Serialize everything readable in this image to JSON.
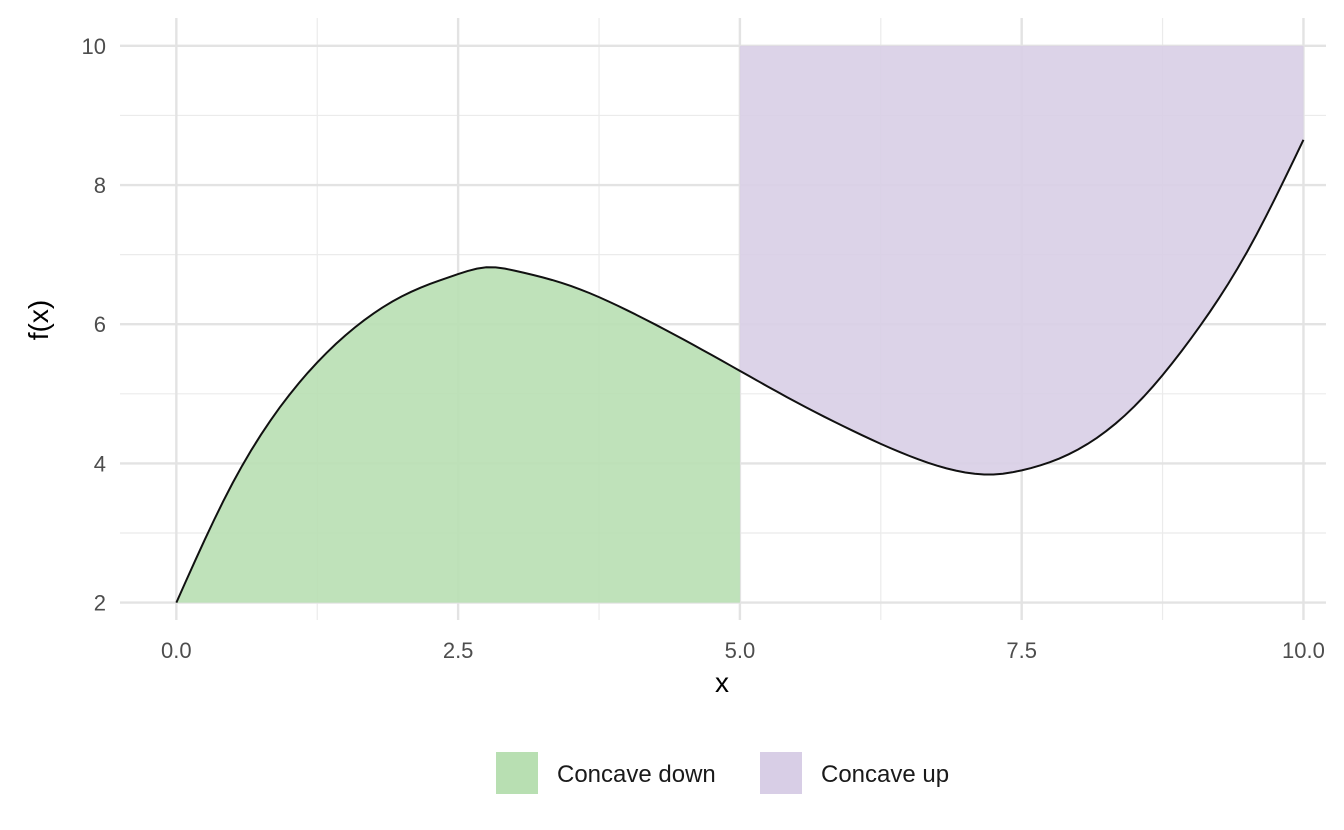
{
  "chart_data": {
    "type": "area",
    "xlabel": "x",
    "ylabel": "f(x)",
    "xlim": [
      -0.5,
      10.2
    ],
    "ylim": [
      1.75,
      10.4
    ],
    "x_ticks": [
      0,
      2.5,
      5,
      7.5,
      10
    ],
    "x_tick_labels": [
      "0.0",
      "2.5",
      "5.0",
      "7.5",
      "10.0"
    ],
    "y_ticks": [
      2,
      4,
      6,
      8,
      10
    ],
    "y_tick_labels": [
      "2",
      "4",
      "6",
      "8",
      "10"
    ],
    "grid": true,
    "legend_position": "bottom",
    "curve": {
      "x": [
        0,
        0.5,
        1,
        1.5,
        2,
        2.5,
        2.76,
        3,
        3.5,
        4,
        4.5,
        5,
        5.5,
        6,
        6.5,
        7,
        7.24,
        7.5,
        8,
        8.5,
        9,
        9.5,
        10
      ],
      "y": [
        2.0,
        3.72,
        4.98,
        5.84,
        6.4,
        6.72,
        6.82,
        6.77,
        6.55,
        6.2,
        5.78,
        5.33,
        4.88,
        4.47,
        4.11,
        3.87,
        3.84,
        3.9,
        4.2,
        4.82,
        5.79,
        7.04,
        8.65
      ]
    },
    "series": [
      {
        "name": "Concave down",
        "color": "#b8dfb2",
        "x_range": [
          0,
          5
        ],
        "fill": "under_curve_to_ymin"
      },
      {
        "name": "Concave up",
        "color": "#d8cee6",
        "x_range": [
          5,
          10
        ],
        "fill": "above_curve_to_ymax"
      }
    ],
    "curve_color": "#111111"
  }
}
